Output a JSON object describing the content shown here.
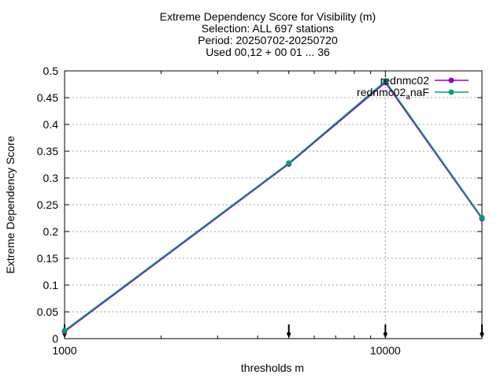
{
  "chart_data": {
    "type": "line",
    "title_lines": [
      "Extreme Dependency Score  for Visibility (m)",
      "Selection: ALL    697 stations",
      "Period: 20250702-20250720",
      "Used 00,12 + 00 01 ... 36"
    ],
    "xlabel": "thresholds m",
    "ylabel": "Extreme Dependency Score",
    "x_scale": "log",
    "xlim": [
      1000,
      20000
    ],
    "ylim": [
      0,
      0.5
    ],
    "x_ticks": [
      1000,
      10000
    ],
    "x_tick_labels": [
      "1000",
      "10000"
    ],
    "y_ticks": [
      0,
      0.05,
      0.1,
      0.15,
      0.2,
      0.25,
      0.3,
      0.35,
      0.4,
      0.45,
      0.5
    ],
    "y_tick_labels": [
      "0",
      "0.05",
      "0.1",
      "0.15",
      "0.2",
      "0.25",
      "0.3",
      "0.35",
      "0.4",
      "0.45",
      "0.5"
    ],
    "grid": true,
    "legend_position": "top-right",
    "x": [
      1000,
      5000,
      10000,
      20000
    ],
    "series": [
      {
        "name": "rednmc02",
        "legend_label": "rednmc02",
        "color": "#9400d3",
        "values": [
          0.013,
          0.326,
          0.478,
          0.224
        ]
      },
      {
        "name": "rednmc02_naF",
        "legend_label": "rednmc02",
        "legend_subscript": "a",
        "legend_suffix": "naF",
        "color": "#009e73",
        "values": [
          0.015,
          0.328,
          0.481,
          0.226
        ]
      }
    ]
  }
}
